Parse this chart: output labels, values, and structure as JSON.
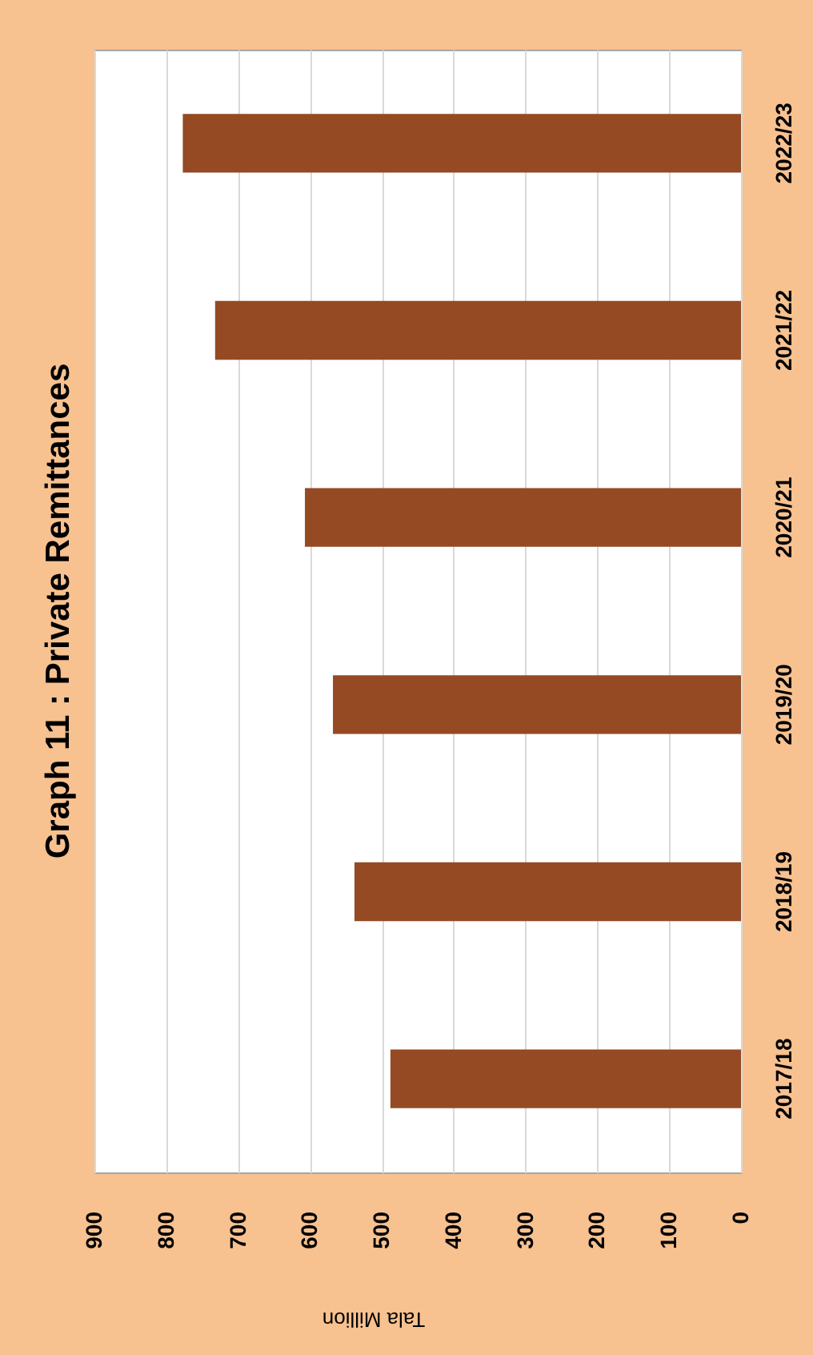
{
  "chart_data": {
    "type": "bar",
    "title": "Graph 11 : Private Remittances",
    "xlabel": "Tala Million",
    "orientation": "horizontal",
    "categories": [
      "2022/23",
      "2021/22",
      "2020/21",
      "2019/20",
      "2018/19",
      "2017/18"
    ],
    "values": [
      777,
      732,
      607,
      568,
      538,
      488
    ],
    "color": "#954a23",
    "xlim": [
      900,
      0
    ],
    "xticks": [
      0,
      100,
      200,
      300,
      400,
      500,
      600,
      700,
      800,
      900
    ],
    "grid": "x"
  }
}
